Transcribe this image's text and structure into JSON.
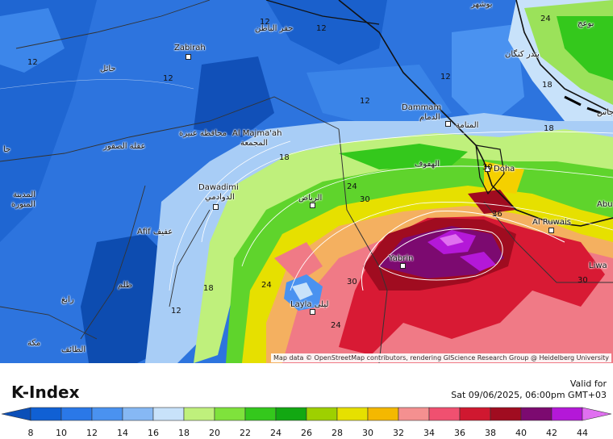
{
  "legend": {
    "title": "K-Index",
    "valid_label": "Valid for",
    "valid_time": "Sat 09/06/2025, 06:00pm GMT+03",
    "ticks": [
      "8",
      "10",
      "12",
      "14",
      "16",
      "18",
      "20",
      "22",
      "24",
      "26",
      "28",
      "30",
      "32",
      "34",
      "36",
      "38",
      "40",
      "42",
      "44"
    ],
    "colors": [
      "#0b4fb8",
      "#1060d4",
      "#2a78e8",
      "#4a92f0",
      "#86b8f4",
      "#c8e2fa",
      "#bff07c",
      "#7fe23c",
      "#34c81c",
      "#12a812",
      "#9ed000",
      "#e6e000",
      "#f4b800",
      "#f49090",
      "#f05070",
      "#d01830",
      "#a00c20",
      "#7c0a70",
      "#b418d8",
      "#e070f0"
    ],
    "colors_note": "colors map the colorbar bins"
  },
  "attribution": "Map data © OpenStreetMap contributors, rendering GIScience Research Group @ Heidelberg University",
  "places": [
    {
      "id": "zabirah",
      "text": "Zabirah"
    },
    {
      "id": "hail",
      "text": "حائل"
    },
    {
      "id": "hafar",
      "text": "حفر الباطن"
    },
    {
      "id": "unaizah",
      "text": "محافظة عنيزة"
    },
    {
      "id": "maimaah",
      "text": "Al Majma'ah"
    },
    {
      "id": "maimaah_ar",
      "text": "المجمعة"
    },
    {
      "id": "uqlat",
      "text": "عقلة الصقور"
    },
    {
      "id": "dammam",
      "text": "Dammam"
    },
    {
      "id": "dammam_ar",
      "text": "الدمام"
    },
    {
      "id": "manama",
      "text": "المنامة"
    },
    {
      "id": "hofuf",
      "text": "الهفوف"
    },
    {
      "id": "doha",
      "text": "Doha"
    },
    {
      "id": "dawadimi",
      "text": "Dawadimi"
    },
    {
      "id": "dawadimi_ar",
      "text": "الدوادمي"
    },
    {
      "id": "riyadh",
      "text": "الرياض"
    },
    {
      "id": "afif",
      "text": "Afif عفيف"
    },
    {
      "id": "madinah",
      "text": "المدينة"
    },
    {
      "id": "munawwarah",
      "text": "المنورة"
    },
    {
      "id": "tathlith",
      "text": "ظلم"
    },
    {
      "id": "rabigh",
      "text": "رابغ"
    },
    {
      "id": "makkah",
      "text": "مكة"
    },
    {
      "id": "taif",
      "text": "الطائف"
    },
    {
      "id": "yabrin",
      "text": "Yabrin"
    },
    {
      "id": "layla",
      "text": "Layla ليلى"
    },
    {
      "id": "ruwais",
      "text": "Al Ruwais"
    },
    {
      "id": "liwa",
      "text": "Liwa"
    },
    {
      "id": "abu",
      "text": "Abu"
    },
    {
      "id": "kuwait",
      "text": "بوشهر"
    },
    {
      "id": "bandar",
      "text": "بندر كنگان"
    },
    {
      "id": "bandar2",
      "text": "بوعج"
    },
    {
      "id": "jais",
      "text": "جاس"
    },
    {
      "id": "wajh",
      "text": "جا"
    }
  ],
  "contour_labels": {
    "c12a": "12",
    "c12b": "12",
    "c12c": "12",
    "c12d": "12",
    "c12e": "12",
    "c12f": "12",
    "c12g": "12",
    "c18a": "18",
    "c18b": "18",
    "c18c": "18",
    "c18d": "18",
    "c24a": "24",
    "c24b": "24",
    "c24c": "24",
    "c24d": "24",
    "c30a": "30",
    "c30b": "30",
    "c30c": "30",
    "c30d": "30",
    "c36": "36"
  }
}
